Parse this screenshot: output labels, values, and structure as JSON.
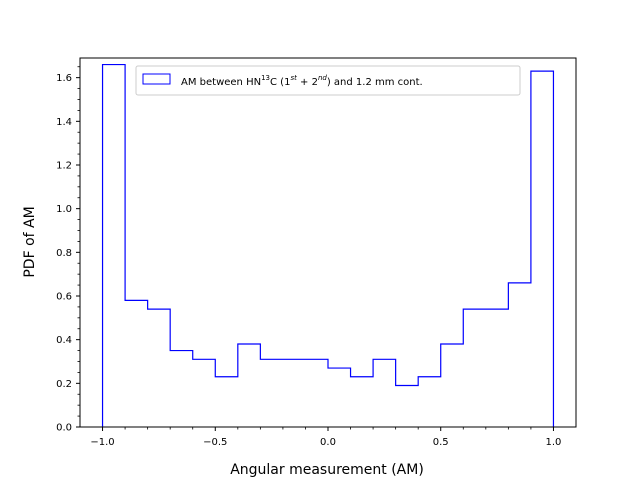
{
  "chart_data": {
    "type": "histogram-step",
    "xlabel": "Angular measurement (AM)",
    "ylabel": "PDF of AM",
    "xlim": [
      -1.1,
      1.1
    ],
    "ylim": [
      0,
      1.69
    ],
    "x_ticks": [
      "−1.0",
      "−0.5",
      "0.0",
      "0.5",
      "1.0"
    ],
    "x_tick_values": [
      -1.0,
      -0.5,
      0.0,
      0.5,
      1.0
    ],
    "y_ticks": [
      "0.0",
      "0.2",
      "0.4",
      "0.6",
      "0.8",
      "1.0",
      "1.2",
      "1.4",
      "1.6"
    ],
    "y_tick_values": [
      0.0,
      0.2,
      0.4,
      0.6,
      0.8,
      1.0,
      1.2,
      1.4,
      1.6
    ],
    "legend": {
      "location": "top-center",
      "label_parts": {
        "a": "AM between HN",
        "b": "13",
        "c": "C (1",
        "d": "st",
        "e": " + 2",
        "f": "nd",
        "g": ") and 1.2 mm cont."
      }
    },
    "series": [
      {
        "name": "AM between HN13C (1st + 2nd) and 1.2 mm cont.",
        "color": "#0000ff",
        "bin_edges": [
          -1.0,
          -0.9,
          -0.8,
          -0.7,
          -0.6,
          -0.5,
          -0.4,
          -0.3,
          -0.2,
          -0.1,
          0.0,
          0.1,
          0.2,
          0.3,
          0.4,
          0.5,
          0.6,
          0.7,
          0.8,
          0.9,
          1.0
        ],
        "values": [
          1.66,
          0.58,
          0.54,
          0.35,
          0.31,
          0.23,
          0.38,
          0.31,
          0.31,
          0.31,
          0.27,
          0.23,
          0.31,
          0.19,
          0.23,
          0.38,
          0.54,
          0.54,
          0.66,
          1.63
        ]
      }
    ]
  }
}
